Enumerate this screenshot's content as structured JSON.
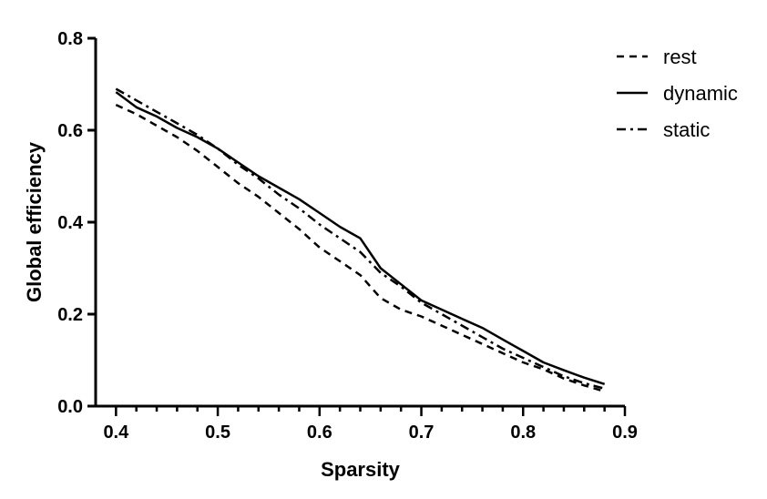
{
  "chart_data": {
    "type": "line",
    "title": "",
    "xlabel": "Sparsity",
    "ylabel": "Global efficiency",
    "xlim": [
      0.38,
      0.9
    ],
    "ylim": [
      0.0,
      0.8
    ],
    "x_ticks": [
      0.4,
      0.5,
      0.6,
      0.7,
      0.8,
      0.9
    ],
    "x_tick_labels": [
      "0.4",
      "0.5",
      "0.6",
      "0.7",
      "0.8",
      "0.9"
    ],
    "y_ticks": [
      0.0,
      0.2,
      0.4,
      0.6,
      0.8
    ],
    "y_tick_labels": [
      "0.0",
      "0.2",
      "0.4",
      "0.6",
      "0.8"
    ],
    "grid": false,
    "legend": {
      "position": "top-right"
    },
    "x": [
      0.4,
      0.42,
      0.44,
      0.46,
      0.48,
      0.5,
      0.52,
      0.54,
      0.56,
      0.58,
      0.6,
      0.62,
      0.64,
      0.66,
      0.68,
      0.7,
      0.72,
      0.74,
      0.76,
      0.78,
      0.8,
      0.82,
      0.84,
      0.86,
      0.88
    ],
    "series": [
      {
        "name": "rest",
        "style": "dashed",
        "values": [
          0.655,
          0.635,
          0.61,
          0.585,
          0.555,
          0.52,
          0.485,
          0.455,
          0.42,
          0.385,
          0.345,
          0.315,
          0.285,
          0.235,
          0.21,
          0.195,
          0.175,
          0.155,
          0.135,
          0.115,
          0.095,
          0.08,
          0.06,
          0.045,
          0.032
        ]
      },
      {
        "name": "dynamic",
        "style": "solid",
        "values": [
          0.683,
          0.65,
          0.63,
          0.605,
          0.585,
          0.56,
          0.53,
          0.5,
          0.475,
          0.45,
          0.42,
          0.39,
          0.365,
          0.3,
          0.265,
          0.23,
          0.21,
          0.19,
          0.17,
          0.145,
          0.12,
          0.095,
          0.078,
          0.062,
          0.048
        ]
      },
      {
        "name": "static",
        "style": "dashdot",
        "values": [
          0.69,
          0.665,
          0.64,
          0.615,
          0.59,
          0.56,
          0.525,
          0.495,
          0.46,
          0.43,
          0.395,
          0.365,
          0.335,
          0.29,
          0.26,
          0.225,
          0.2,
          0.175,
          0.15,
          0.125,
          0.105,
          0.085,
          0.065,
          0.05,
          0.038
        ]
      }
    ]
  }
}
